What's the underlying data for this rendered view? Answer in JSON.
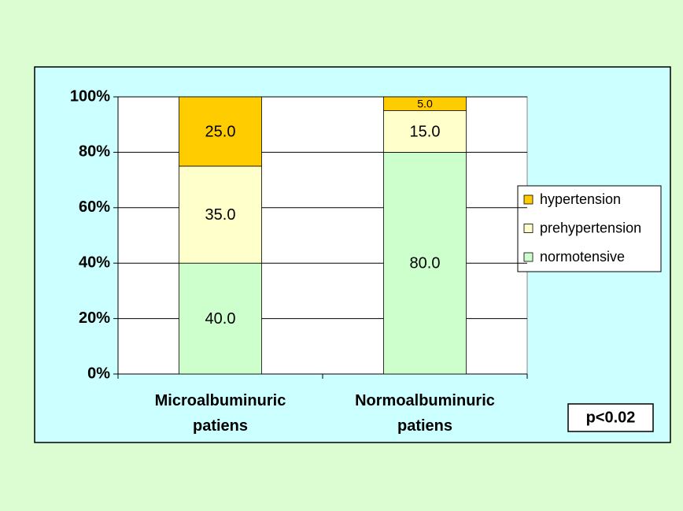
{
  "chart_data": {
    "type": "stacked_bar",
    "categories": [
      "Microalbuminuric patiens",
      "Normoalbuminuric patiens"
    ],
    "series": [
      {
        "name": "normotensive",
        "color": "#ccffcc",
        "values": [
          40,
          80
        ],
        "value_labels": [
          "40.0",
          "80.0"
        ]
      },
      {
        "name": "prehypertension",
        "color": "#ffffcc",
        "values": [
          35,
          15
        ],
        "value_labels": [
          "35.0",
          "15.0"
        ]
      },
      {
        "name": "hypertension",
        "color": "#ffcc00",
        "values": [
          25,
          5
        ],
        "value_labels": [
          "25.0",
          "5.0"
        ]
      }
    ],
    "ylim": [
      0,
      100
    ],
    "yticks": [
      {
        "value": 0,
        "label": "0%"
      },
      {
        "value": 20,
        "label": "20%"
      },
      {
        "value": 40,
        "label": "40%"
      },
      {
        "value": 60,
        "label": "60%"
      },
      {
        "value": 80,
        "label": "80%"
      },
      {
        "value": 100,
        "label": "100%"
      }
    ],
    "grid": true,
    "legend": "right",
    "annotation": "p<0.02"
  }
}
